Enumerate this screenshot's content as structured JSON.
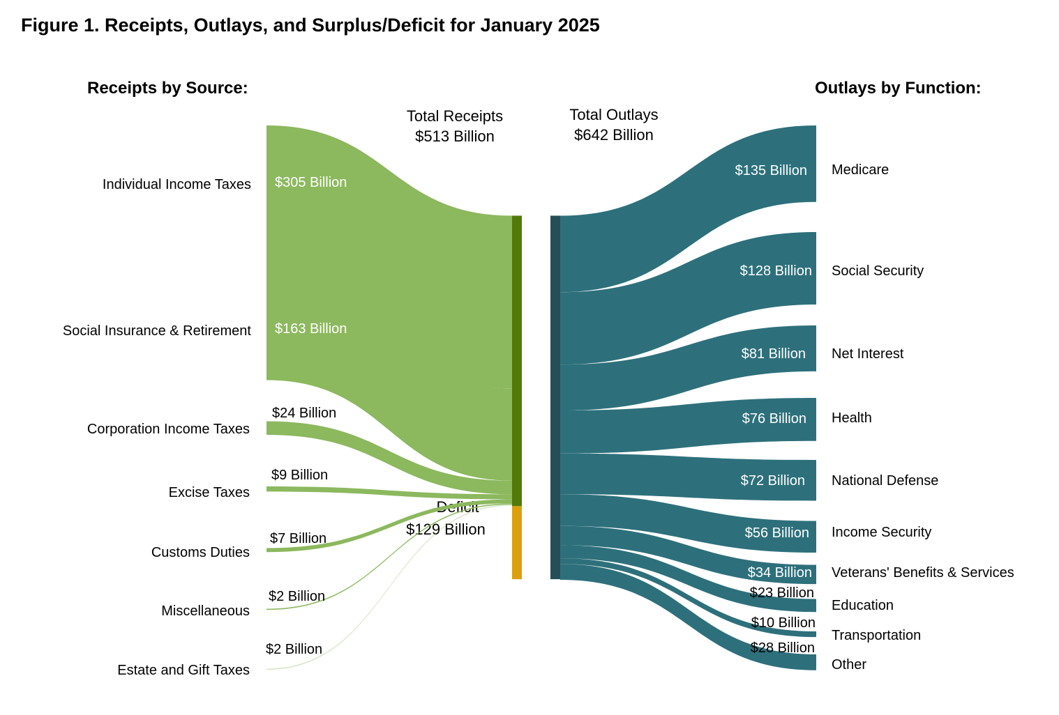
{
  "page_title": "Figure 1. Receipts, Outlays, and Surplus/Deficit for January 2025",
  "receipts_heading": "Receipts by Source:",
  "outlays_heading": "Outlays by Function:",
  "total_receipts": {
    "label": "Total Receipts",
    "value_text": "$513 Billion"
  },
  "total_outlays": {
    "label": "Total Outlays",
    "value_text": "$642 Billion"
  },
  "deficit": {
    "label": "Deficit",
    "value_text": "$129 Billion"
  },
  "colors": {
    "receipts_flow": "#8cb85e",
    "receipts_node": "#527a08",
    "deficit_node": "#dba00e",
    "outlays_flow": "#2d707b",
    "outlays_node": "#254e55"
  },
  "chart_data": {
    "type": "sankey",
    "unit": "Billion",
    "receipts": [
      {
        "name": "Individual Income Taxes",
        "value": 305,
        "label": "$305 Billion"
      },
      {
        "name": "Social Insurance & Retirement",
        "value": 163,
        "label": "$163 Billion"
      },
      {
        "name": "Corporation Income Taxes",
        "value": 24,
        "label": "$24 Billion"
      },
      {
        "name": "Excise Taxes",
        "value": 9,
        "label": "$9 Billion"
      },
      {
        "name": "Customs Duties",
        "value": 7,
        "label": "$7 Billion"
      },
      {
        "name": "Miscellaneous",
        "value": 2,
        "label": "$2 Billion"
      },
      {
        "name": "Estate and Gift Taxes",
        "value": 2,
        "label": "$2 Billion"
      }
    ],
    "deficit": 129,
    "total_receipts": 513,
    "total_outlays": 642,
    "outlays": [
      {
        "name": "Medicare",
        "value": 135,
        "label": "$135 Billion"
      },
      {
        "name": "Social Security",
        "value": 128,
        "label": "$128 Billion"
      },
      {
        "name": "Net Interest",
        "value": 81,
        "label": "$81 Billion"
      },
      {
        "name": "Health",
        "value": 76,
        "label": "$76 Billion"
      },
      {
        "name": "National Defense",
        "value": 72,
        "label": "$72 Billion"
      },
      {
        "name": "Income Security",
        "value": 56,
        "label": "$56 Billion"
      },
      {
        "name": "Veterans' Benefits & Services",
        "value": 34,
        "label": "$34 Billion"
      },
      {
        "name": "Education",
        "value": 23,
        "label": "$23 Billion"
      },
      {
        "name": "Transportation",
        "value": 10,
        "label": "$10 Billion"
      },
      {
        "name": "Other",
        "value": 28,
        "label": "$28 Billion"
      }
    ]
  }
}
